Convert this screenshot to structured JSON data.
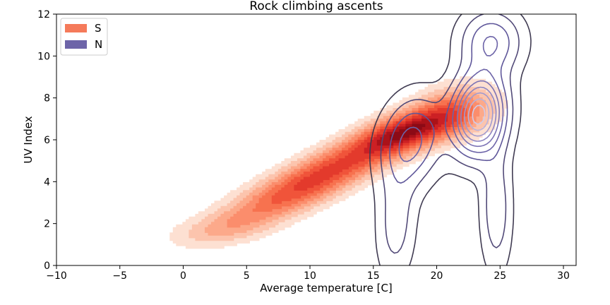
{
  "chart_data": {
    "type": "contour",
    "title": "Rock climbing ascents",
    "xlabel": "Average temperature [C]",
    "ylabel": "UV Index",
    "xlim": [
      -10,
      31
    ],
    "ylim": [
      0,
      12
    ],
    "xticks": [
      -10,
      -5,
      0,
      5,
      10,
      15,
      20,
      25,
      30
    ],
    "yticks": [
      0,
      2,
      4,
      6,
      8,
      10,
      12
    ],
    "grid": false,
    "legend_position": "top-left",
    "series": [
      {
        "name": "S",
        "style": "filled-density",
        "color": "#f57a5a",
        "palette": [
          "#fde0d2",
          "#fcc4ad",
          "#fca98a",
          "#fb8d6c",
          "#f7724f",
          "#f0543a",
          "#e33a2c",
          "#cc2024",
          "#ab1219",
          "#8c0a16"
        ],
        "components": [
          {
            "weight": 1.0,
            "mean": [
              17.5,
              6.4
            ],
            "sd": [
              2.8,
              0.8
            ],
            "rho": 0.55
          },
          {
            "weight": 0.75,
            "mean": [
              12.0,
              4.7
            ],
            "sd": [
              3.5,
              1.0
            ],
            "rho": 0.7
          },
          {
            "weight": 0.55,
            "mean": [
              7.5,
              3.1
            ],
            "sd": [
              3.3,
              0.9
            ],
            "rho": 0.65
          },
          {
            "weight": 0.3,
            "mean": [
              3.0,
              1.7
            ],
            "sd": [
              2.8,
              0.6
            ],
            "rho": 0.4
          },
          {
            "weight": 0.55,
            "mean": [
              21.5,
              7.4
            ],
            "sd": [
              2.2,
              0.9
            ],
            "rho": 0.2
          },
          {
            "weight": 0.04,
            "mean": [
              18.5,
              0.1
            ],
            "sd": [
              1.0,
              0.3
            ],
            "rho": 0.0
          }
        ]
      },
      {
        "name": "N",
        "style": "contour-lines",
        "color": "#6d64a8",
        "palette": [
          "#403b52",
          "#524a78",
          "#5f579a",
          "#6d64a8",
          "#7d74b5",
          "#8e86c2",
          "#a29bce",
          "#b8b2dc",
          "#d0ccea"
        ],
        "components": [
          {
            "weight": 1.0,
            "mean": [
              23.3,
              7.2
            ],
            "sd": [
              1.4,
              1.3
            ],
            "rho": 0.1
          },
          {
            "weight": 0.4,
            "mean": [
              24.3,
              10.7
            ],
            "sd": [
              1.6,
              1.0
            ],
            "rho": 0.0
          },
          {
            "weight": 0.45,
            "mean": [
              18.0,
              5.9
            ],
            "sd": [
              1.6,
              1.4
            ],
            "rho": 0.2
          },
          {
            "weight": 0.25,
            "mean": [
              24.7,
              2.7
            ],
            "sd": [
              0.8,
              2.0
            ],
            "rho": 0.0
          },
          {
            "weight": 0.22,
            "mean": [
              16.8,
              2.0
            ],
            "sd": [
              1.0,
              1.8
            ],
            "rho": 0.1
          }
        ]
      }
    ]
  }
}
